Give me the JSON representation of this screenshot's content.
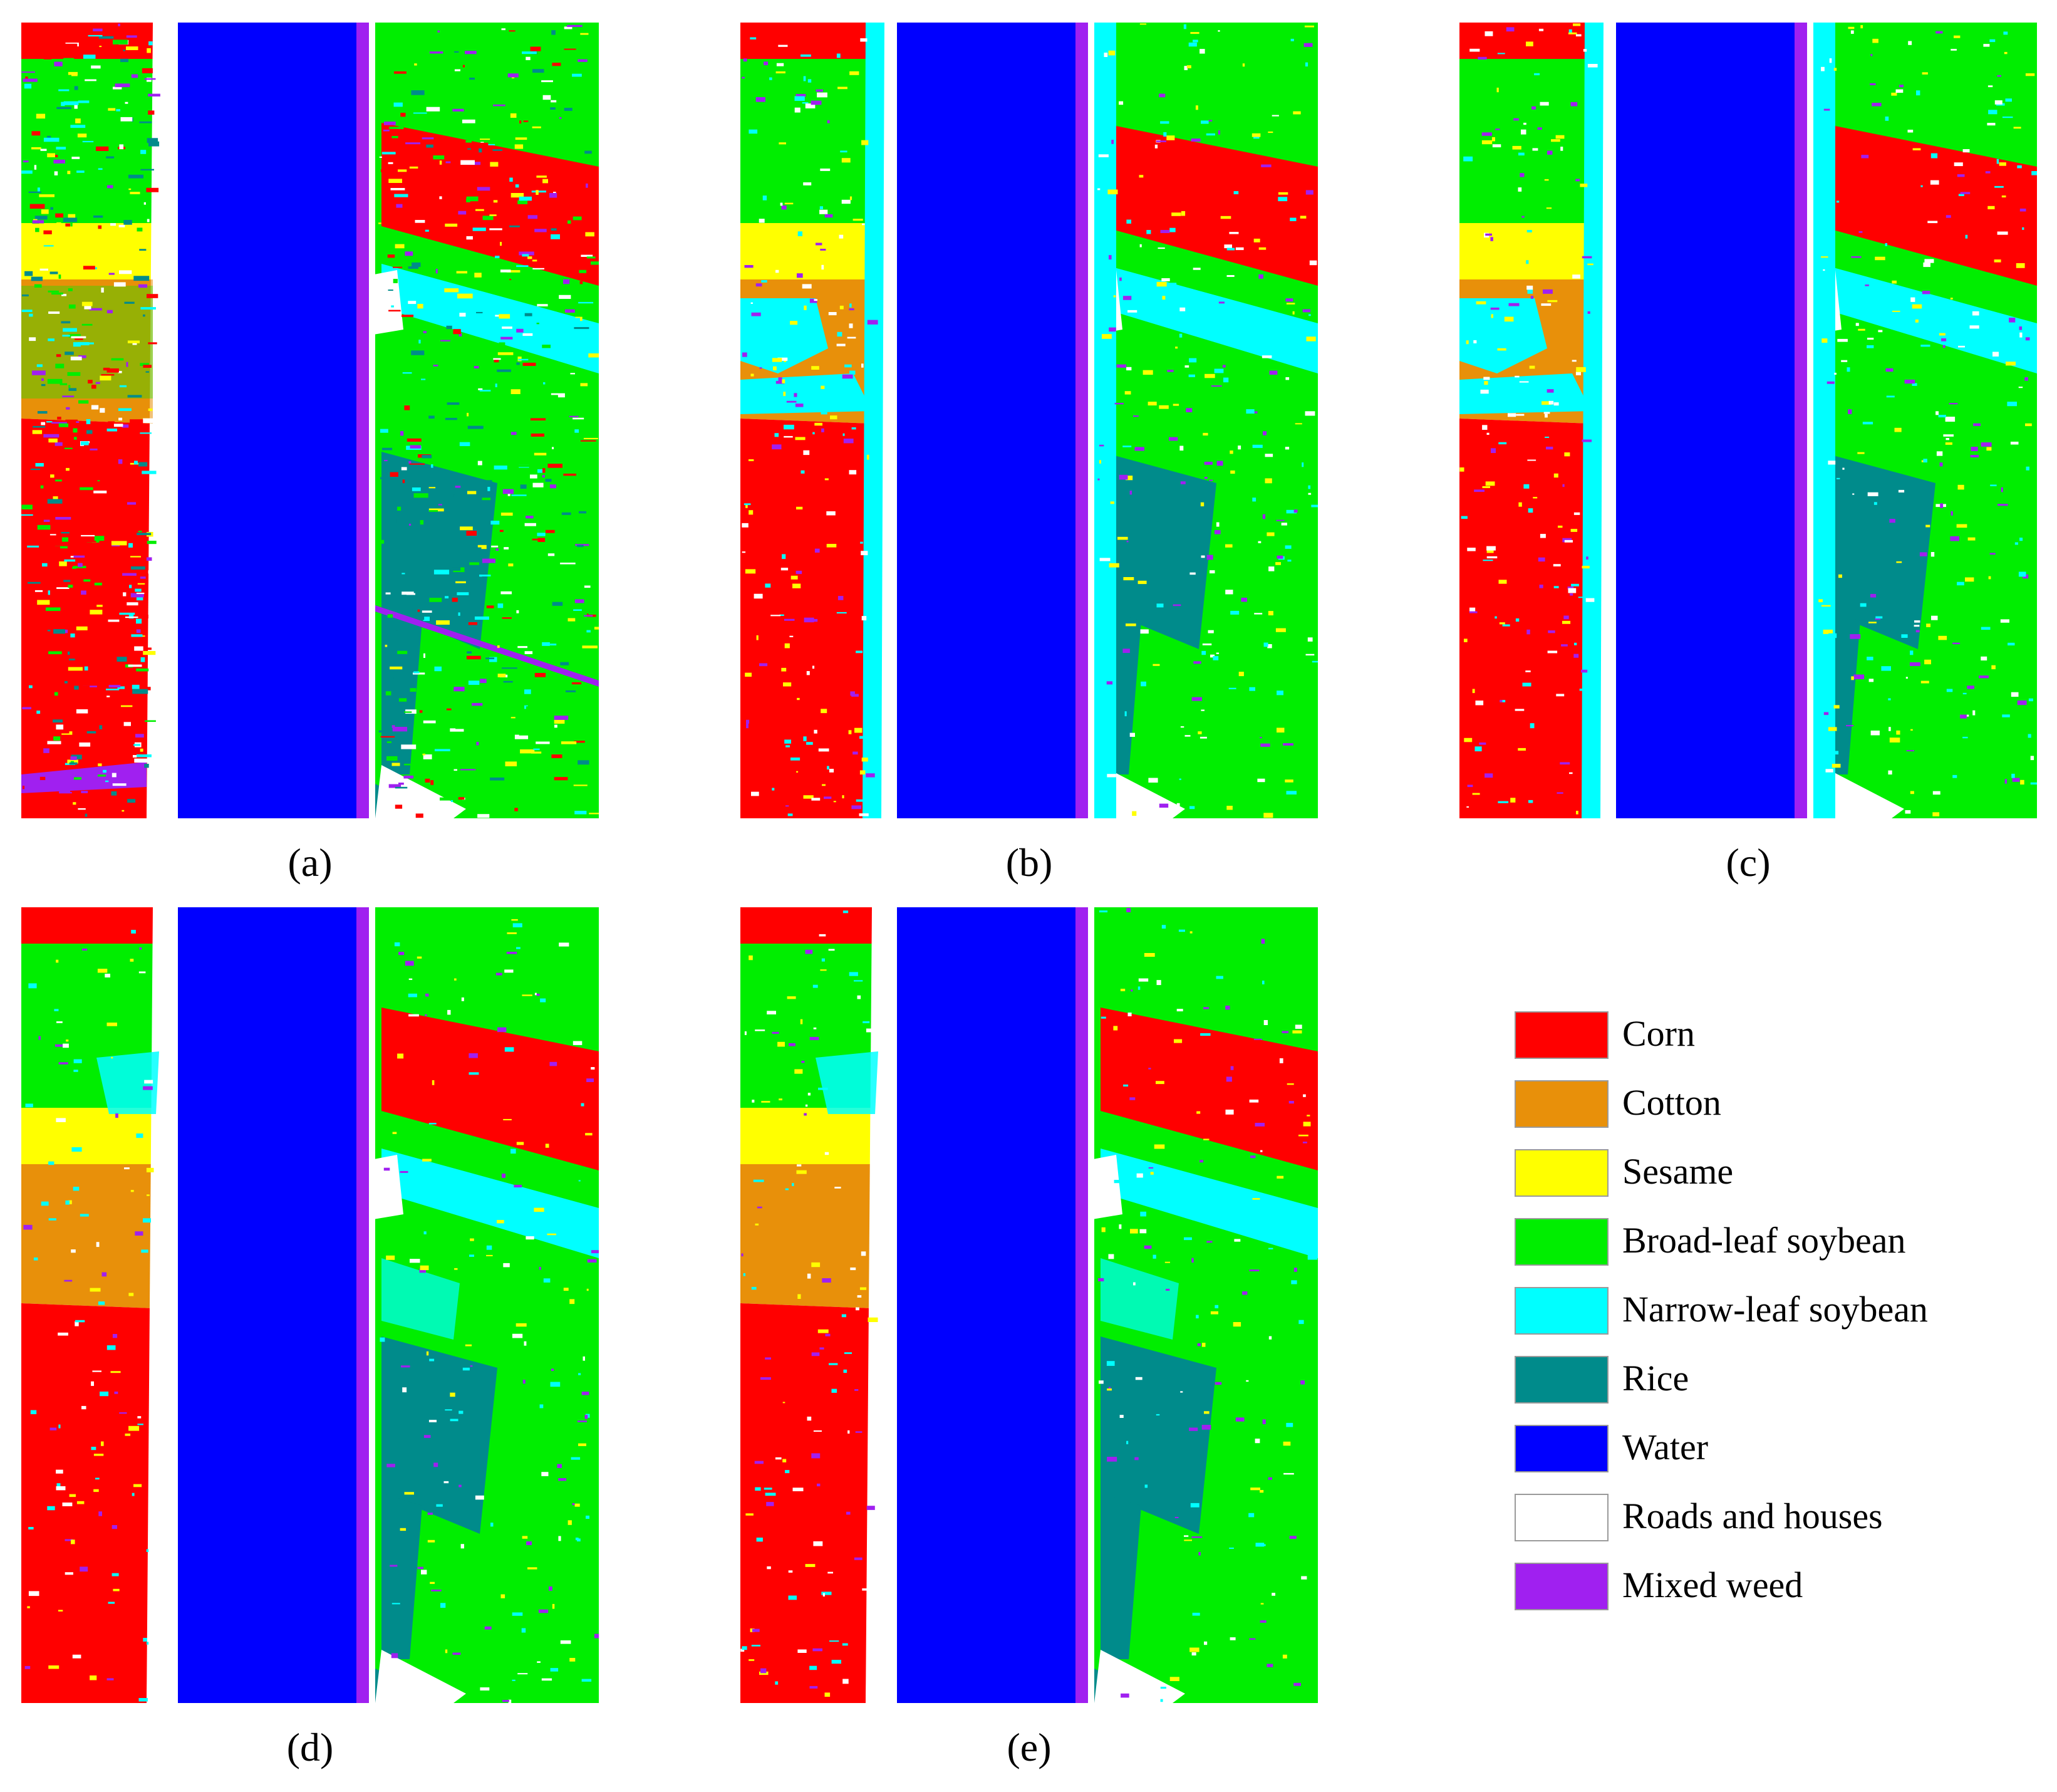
{
  "figure": {
    "panels": [
      {
        "id": "a",
        "caption": "(a)",
        "variant": "noisy"
      },
      {
        "id": "b",
        "caption": "(b)",
        "variant": "cyan"
      },
      {
        "id": "c",
        "caption": "(c)",
        "variant": "cyan"
      },
      {
        "id": "d",
        "caption": "(d)",
        "variant": "clean"
      },
      {
        "id": "e",
        "caption": "(e)",
        "variant": "clean"
      }
    ]
  },
  "legend": {
    "items": [
      {
        "label": "Corn",
        "color": "#ff0000"
      },
      {
        "label": "Cotton",
        "color": "#e8900a"
      },
      {
        "label": "Sesame",
        "color": "#ffff00"
      },
      {
        "label": "Broad-leaf soybean",
        "color": "#00ee00"
      },
      {
        "label": "Narrow-leaf soybean",
        "color": "#00ffff"
      },
      {
        "label": "Rice",
        "color": "#008b8b"
      },
      {
        "label": "Water",
        "color": "#0000ff"
      },
      {
        "label": "Roads and houses",
        "color": "#ffffff"
      },
      {
        "label": "Mixed weed",
        "color": "#a020f0"
      }
    ]
  }
}
